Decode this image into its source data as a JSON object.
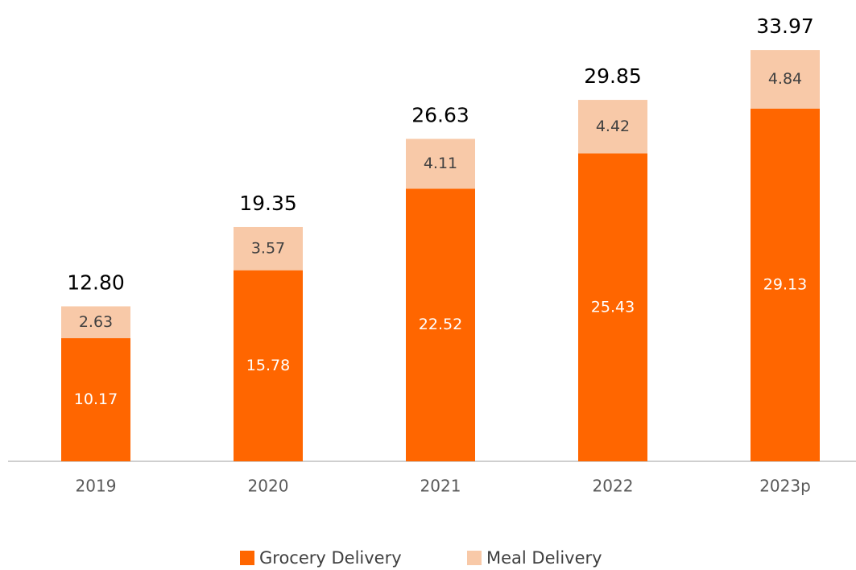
{
  "chart_data": {
    "type": "stacked_bar",
    "categories": [
      "2019",
      "2020",
      "2021",
      "2022",
      "2023p"
    ],
    "series": [
      {
        "name": "Grocery Delivery",
        "color": "#ff6600",
        "label_color": "#ffffff",
        "values": [
          10.17,
          15.78,
          22.52,
          25.43,
          29.13
        ]
      },
      {
        "name": "Meal Delivery",
        "color": "#f8c9a8",
        "label_color": "#404040",
        "values": [
          2.63,
          3.57,
          4.11,
          4.42,
          4.84
        ]
      }
    ],
    "totals": [
      12.8,
      19.35,
      26.63,
      29.85,
      33.97
    ],
    "total_labels": [
      "12.80",
      "19.35",
      "26.63",
      "29.85",
      "33.97"
    ],
    "legend": "bottom"
  }
}
